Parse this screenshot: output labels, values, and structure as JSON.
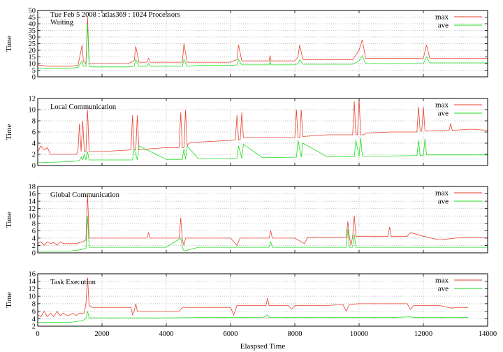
{
  "chart_data": {
    "type": "line",
    "header": "Tue Feb 5 2008 : atlas369 : 1024 Processors",
    "xlabel": "Elaspsed Time",
    "xlim": [
      0,
      14000
    ],
    "xticks": [
      0,
      2000,
      4000,
      6000,
      8000,
      10000,
      12000,
      14000
    ],
    "grid": true,
    "legend_position": "top-right",
    "colors": {
      "max": "#e8402f",
      "ave": "#22dd22"
    },
    "panels": [
      {
        "title": "Waiting",
        "ylabel": "Time",
        "ylim": [
          0,
          50
        ],
        "yticks": [
          0,
          5,
          10,
          15,
          20,
          25,
          30,
          35,
          40,
          45,
          50
        ],
        "series": [
          {
            "name": "max",
            "x": [
              0,
              300,
              600,
              1000,
              1250,
              1300,
              1380,
              1420,
              1500,
              1550,
              1600,
              1700,
              2000,
              2800,
              3000,
              3050,
              3150,
              3400,
              3450,
              3500,
              4000,
              4500,
              4550,
              4650,
              5000,
              6000,
              6200,
              6250,
              6350,
              7000,
              7200,
              7230,
              7260,
              8000,
              8100,
              8150,
              8250,
              9000,
              9800,
              10000,
              10100,
              10200,
              11000,
              11500,
              12000,
              12100,
              12200,
              13000,
              14000
            ],
            "values": [
              9,
              8,
              8,
              8,
              8.5,
              14,
              24,
              12,
              10,
              45,
              10,
              10,
              10,
              10,
              12,
              23,
              11,
              11,
              14,
              11,
              11,
              11,
              25,
              11,
              11,
              11,
              13,
              24,
              12,
              12,
              12,
              16,
              12,
              12,
              15,
              24,
              13,
              13,
              13,
              20,
              28,
              14,
              14,
              14,
              14,
              24,
              14,
              14,
              14
            ]
          },
          {
            "name": "ave",
            "x": [
              0,
              300,
              600,
              1000,
              1250,
              1300,
              1380,
              1420,
              1500,
              1550,
              1600,
              1700,
              2000,
              2800,
              3000,
              3050,
              3150,
              3400,
              3450,
              3500,
              4000,
              4500,
              4550,
              4650,
              5000,
              6000,
              6200,
              6250,
              6350,
              7000,
              7200,
              7230,
              7260,
              8000,
              8100,
              8150,
              8250,
              9000,
              9800,
              10000,
              10100,
              10200,
              11000,
              11500,
              12000,
              12100,
              12200,
              13000,
              14000
            ],
            "values": [
              6.5,
              6,
              6,
              6.5,
              7,
              9,
              12,
              8,
              8,
              40,
              8,
              7.5,
              7.5,
              7.5,
              8,
              13,
              8,
              8,
              10,
              8,
              8,
              8,
              13,
              8,
              8.5,
              8.5,
              9,
              13,
              9,
              9,
              9,
              12,
              9,
              9,
              10,
              13,
              9.5,
              9.5,
              9.5,
              12,
              16,
              10,
              10,
              10,
              10,
              15,
              10.5,
              10.5,
              10.5
            ]
          }
        ]
      },
      {
        "title": "Local Communication",
        "ylabel": "Time",
        "ylim": [
          0,
          12
        ],
        "yticks": [
          0,
          2,
          4,
          6,
          8,
          10,
          12
        ],
        "series": [
          {
            "name": "max",
            "x": [
              0,
              100,
              200,
              300,
              400,
              1000,
              1200,
              1250,
              1300,
              1350,
              1400,
              1450,
              1500,
              1550,
              1600,
              2000,
              2900,
              2950,
              3000,
              3050,
              3100,
              3150,
              3500,
              4000,
              4400,
              4450,
              4500,
              4550,
              4600,
              4650,
              4700,
              5000,
              6000,
              6150,
              6200,
              6250,
              6300,
              6350,
              6400,
              7000,
              8000,
              8050,
              8100,
              8150,
              8200,
              8250,
              9000,
              9800,
              9850,
              9900,
              9950,
              10000,
              10050,
              10100,
              10150,
              10200,
              11000,
              11800,
              11850,
              11900,
              11950,
              12000,
              12050,
              12100,
              12800,
              12850,
              12900,
              13500,
              14000
            ],
            "values": [
              2.5,
              3.5,
              2.8,
              3.2,
              2,
              2,
              2,
              2.5,
              7.5,
              2.5,
              8,
              2.5,
              2.5,
              10,
              2.5,
              2.5,
              2.8,
              9,
              2.8,
              2.8,
              9,
              2.8,
              3,
              3.2,
              3.2,
              9.5,
              3.2,
              3.2,
              10,
              3.5,
              4,
              4.2,
              4.5,
              4.6,
              9,
              4.6,
              4.6,
              9.5,
              5,
              5,
              5,
              10,
              5,
              5,
              10,
              5.2,
              5.5,
              5.5,
              11.5,
              5.5,
              5.5,
              12,
              5.5,
              5.5,
              5.5,
              5.8,
              6,
              6,
              10.5,
              6.2,
              6.2,
              10.5,
              6.2,
              6.2,
              6.3,
              7.5,
              6.3,
              6.5,
              6.3
            ]
          },
          {
            "name": "ave",
            "x": [
              0,
              1000,
              1200,
              1300,
              1350,
              1400,
              1450,
              1500,
              1550,
              1600,
              2000,
              2950,
              3000,
              3100,
              3150,
              4000,
              4500,
              4550,
              4600,
              4650,
              5000,
              6200,
              6250,
              6350,
              6400,
              7000,
              8050,
              8100,
              8200,
              8250,
              9000,
              9850,
              9900,
              10000,
              10050,
              10100,
              11000,
              11800,
              11850,
              11900,
              12000,
              12050,
              12100,
              13000,
              14000
            ],
            "values": [
              0.5,
              0.7,
              0.8,
              0.9,
              1.5,
              1,
              2,
              1,
              2.5,
              1,
              1,
              1,
              3,
              1,
              3.5,
              1.1,
              1.1,
              3,
              1.1,
              3.5,
              1.2,
              1.3,
              3.5,
              1.3,
              3.8,
              1.4,
              1.5,
              4.5,
              1.5,
              4,
              1.6,
              1.6,
              4.5,
              1.6,
              5,
              1.7,
              1.7,
              1.8,
              4.5,
              1.8,
              1.8,
              4.8,
              1.9,
              1.9,
              1.9
            ]
          }
        ]
      },
      {
        "title": "Global Communication",
        "ylabel": "Time",
        "ylim": [
          0,
          18
        ],
        "yticks": [
          0,
          2,
          4,
          6,
          8,
          10,
          12,
          14,
          16,
          18
        ],
        "series": [
          {
            "name": "max",
            "x": [
              0,
              100,
              200,
              300,
              400,
              500,
              600,
              700,
              800,
              900,
              1000,
              1100,
              1200,
              1300,
              1400,
              1500,
              1550,
              1600,
              1700,
              2000,
              3000,
              3400,
              3450,
              3500,
              4000,
              4400,
              4450,
              4500,
              4550,
              4600,
              5000,
              6000,
              6200,
              6300,
              6500,
              7000,
              7200,
              7250,
              7300,
              8000,
              8300,
              8400,
              9000,
              9600,
              9650,
              9700,
              9750,
              9800,
              9850,
              9900,
              10500,
              10900,
              10950,
              11000,
              11500,
              11600,
              12000,
              12500,
              13000,
              13500,
              14000
            ],
            "values": [
              2.5,
              3,
              2,
              3,
              2.5,
              2.8,
              2,
              3,
              2.5,
              2.5,
              2.5,
              2.5,
              2.5,
              2.8,
              3,
              3.5,
              16,
              4,
              4,
              4,
              4,
              4,
              5.5,
              4,
              4,
              4,
              9.5,
              3.5,
              2,
              4,
              4,
              4,
              2,
              4,
              4,
              4,
              4,
              6,
              4,
              4,
              2.5,
              4.2,
              4.2,
              4.2,
              8.5,
              4.2,
              2,
              4.5,
              10,
              4.5,
              4.5,
              4.5,
              7,
              4.5,
              4.5,
              5.5,
              4.5,
              3.5,
              4,
              4.2,
              4
            ]
          },
          {
            "name": "ave",
            "x": [
              0,
              1000,
              1300,
              1400,
              1500,
              1550,
              1600,
              1700,
              2000,
              3000,
              4000,
              4450,
              4500,
              4550,
              5000,
              6200,
              6300,
              7000,
              7200,
              7250,
              7300,
              8000,
              8300,
              8400,
              9000,
              9600,
              9650,
              9700,
              9800,
              9850,
              9900,
              10000,
              11000,
              12000,
              13000,
              14000
            ],
            "values": [
              0.5,
              0.5,
              0.8,
              1,
              1.2,
              10,
              1.5,
              1.5,
              1.5,
              1.5,
              1.5,
              4,
              1.5,
              0.5,
              1.5,
              1.5,
              1.5,
              1.5,
              1.5,
              3,
              1.5,
              1.5,
              1.5,
              1.5,
              1.5,
              1.5,
              6.5,
              1.5,
              1.5,
              5,
              1.5,
              1.5,
              1.5,
              1.5,
              1.5,
              1.5
            ]
          }
        ]
      },
      {
        "title": "Task Execution",
        "ylabel": "Time",
        "ylim": [
          2,
          16
        ],
        "yticks": [
          2,
          4,
          6,
          8,
          10,
          12,
          14,
          16
        ],
        "series": [
          {
            "name": "max",
            "x": [
              0,
              100,
              200,
              300,
              400,
              500,
              600,
              700,
              800,
              900,
              1000,
              1100,
              1200,
              1300,
              1400,
              1450,
              1500,
              1550,
              1600,
              1700,
              2000,
              2900,
              2950,
              3000,
              3050,
              3100,
              3500,
              4000,
              4400,
              4500,
              5000,
              6000,
              6100,
              6200,
              7000,
              7100,
              7150,
              7200,
              7800,
              7900,
              8000,
              9000,
              9500,
              9600,
              9700,
              10000,
              11000,
              11500,
              11600,
              11700,
              12000,
              12500,
              12900,
              13000,
              13400
            ],
            "values": [
              5,
              4.5,
              6,
              4.5,
              5.5,
              4.5,
              6,
              4.8,
              5.5,
              4.8,
              5,
              5.5,
              4.8,
              5.5,
              5.5,
              5.5,
              8,
              15,
              7.5,
              7,
              7,
              7,
              5,
              6,
              8,
              6,
              6,
              6,
              6,
              7,
              7,
              7,
              5,
              7.5,
              7.5,
              7.5,
              9.5,
              7.5,
              7.5,
              6.5,
              7.5,
              7.5,
              7.8,
              6,
              7.8,
              8,
              8,
              8,
              6.5,
              7.5,
              7.5,
              7.5,
              6.8,
              7,
              7
            ]
          },
          {
            "name": "ave",
            "x": [
              0,
              1000,
              1400,
              1500,
              1550,
              1600,
              1700,
              2000,
              3000,
              4000,
              5000,
              6000,
              6100,
              6200,
              7000,
              7150,
              7200,
              8000,
              9000,
              9600,
              9700,
              10000,
              11000,
              11600,
              11700,
              12000,
              13000,
              13400
            ],
            "values": [
              3,
              3,
              3.5,
              4,
              6,
              4.2,
              4.2,
              4.2,
              4.2,
              4.2,
              4.3,
              4.3,
              4.3,
              4.3,
              4.3,
              5,
              4.3,
              4.3,
              4.3,
              4.3,
              4.3,
              4.3,
              4.3,
              4.5,
              4.3,
              4.3,
              4.3,
              4.3
            ]
          }
        ]
      }
    ]
  }
}
